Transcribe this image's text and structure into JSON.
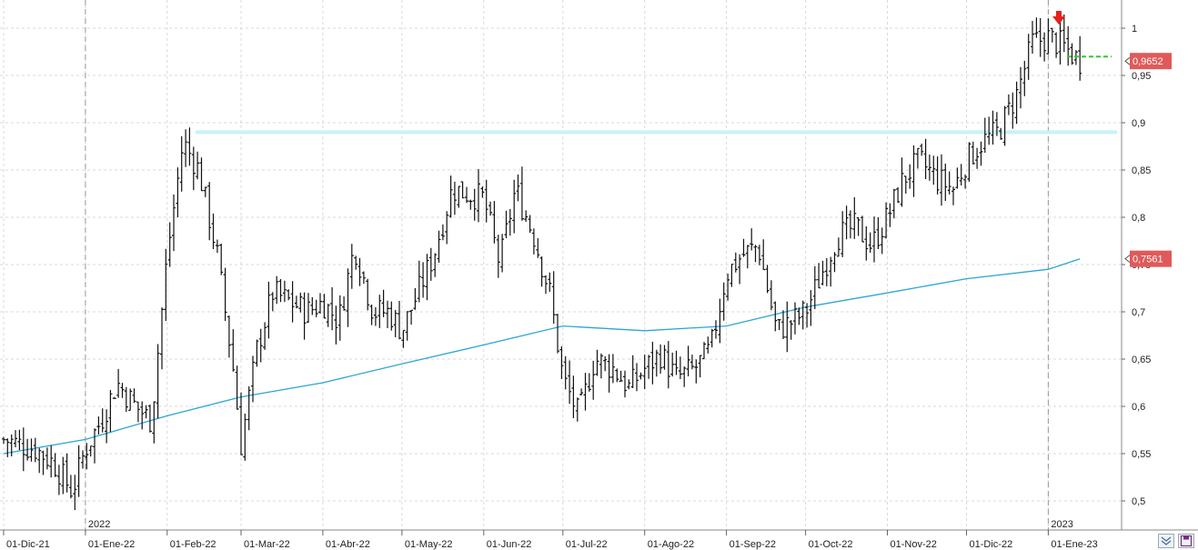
{
  "chart_data": {
    "type": "ohlc",
    "title": "",
    "xlabel": "",
    "ylabel": "",
    "ylim": [
      0.48,
      1.03
    ],
    "y_ticks": [
      "0,5",
      "0,55",
      "0,6",
      "0,65",
      "0,7",
      "0,75",
      "0,8",
      "0,85",
      "0,9",
      "0,95",
      "1"
    ],
    "x_tick_labels": [
      "01-Dic-21",
      "01-Ene-22",
      "01-Feb-22",
      "01-Mar-22",
      "01-Abr-22",
      "01-May-22",
      "01-Jun-22",
      "01-Jul-22",
      "01-Ago-22",
      "01-Sep-22",
      "01-Oct-22",
      "01-Nov-22",
      "01-Dic-22",
      "01-Ene-23"
    ],
    "year_labels": [
      "2022",
      "2023"
    ],
    "price_close_series": [
      [
        "2021-12-01",
        0.565
      ],
      [
        "2021-12-07",
        0.56
      ],
      [
        "2021-12-13",
        0.555
      ],
      [
        "2021-12-20",
        0.54
      ],
      [
        "2021-12-27",
        0.51
      ],
      [
        "2022-01-01",
        0.555
      ],
      [
        "2022-01-07",
        0.585
      ],
      [
        "2022-01-13",
        0.625
      ],
      [
        "2022-01-20",
        0.6
      ],
      [
        "2022-01-26",
        0.585
      ],
      [
        "2022-02-01",
        0.76
      ],
      [
        "2022-02-07",
        0.88
      ],
      [
        "2022-02-13",
        0.85
      ],
      [
        "2022-02-20",
        0.76
      ],
      [
        "2022-02-26",
        0.64
      ],
      [
        "2022-03-01",
        0.56
      ],
      [
        "2022-03-07",
        0.66
      ],
      [
        "2022-03-13",
        0.72
      ],
      [
        "2022-03-20",
        0.71
      ],
      [
        "2022-03-26",
        0.7
      ],
      [
        "2022-04-01",
        0.71
      ],
      [
        "2022-04-07",
        0.69
      ],
      [
        "2022-04-13",
        0.77
      ],
      [
        "2022-04-20",
        0.7
      ],
      [
        "2022-04-26",
        0.7
      ],
      [
        "2022-05-01",
        0.68
      ],
      [
        "2022-05-07",
        0.72
      ],
      [
        "2022-05-13",
        0.76
      ],
      [
        "2022-05-20",
        0.83
      ],
      [
        "2022-05-26",
        0.825
      ],
      [
        "2022-06-01",
        0.82
      ],
      [
        "2022-06-07",
        0.75
      ],
      [
        "2022-06-13",
        0.83
      ],
      [
        "2022-06-20",
        0.78
      ],
      [
        "2022-06-26",
        0.72
      ],
      [
        "2022-07-01",
        0.63
      ],
      [
        "2022-07-07",
        0.59
      ],
      [
        "2022-07-13",
        0.65
      ],
      [
        "2022-07-20",
        0.64
      ],
      [
        "2022-07-26",
        0.62
      ],
      [
        "2022-08-01",
        0.64
      ],
      [
        "2022-08-07",
        0.655
      ],
      [
        "2022-08-13",
        0.63
      ],
      [
        "2022-08-20",
        0.64
      ],
      [
        "2022-08-26",
        0.66
      ],
      [
        "2022-09-01",
        0.74
      ],
      [
        "2022-09-07",
        0.76
      ],
      [
        "2022-09-13",
        0.77
      ],
      [
        "2022-09-20",
        0.68
      ],
      [
        "2022-09-26",
        0.69
      ],
      [
        "2022-10-01",
        0.7
      ],
      [
        "2022-10-07",
        0.74
      ],
      [
        "2022-10-13",
        0.78
      ],
      [
        "2022-10-20",
        0.79
      ],
      [
        "2022-10-26",
        0.77
      ],
      [
        "2022-11-01",
        0.8
      ],
      [
        "2022-11-07",
        0.84
      ],
      [
        "2022-11-13",
        0.86
      ],
      [
        "2022-11-20",
        0.84
      ],
      [
        "2022-11-26",
        0.83
      ],
      [
        "2022-12-01",
        0.86
      ],
      [
        "2022-12-07",
        0.88
      ],
      [
        "2022-12-13",
        0.89
      ],
      [
        "2022-12-20",
        0.93
      ],
      [
        "2022-12-26",
        0.985
      ],
      [
        "2023-01-01",
        0.99
      ],
      [
        "2023-01-07",
        0.98
      ],
      [
        "2023-01-13",
        0.9652
      ]
    ],
    "moving_average_series": [
      [
        "2021-12-01",
        0.55
      ],
      [
        "2022-01-01",
        0.565
      ],
      [
        "2022-02-01",
        0.59
      ],
      [
        "2022-03-01",
        0.61
      ],
      [
        "2022-04-01",
        0.625
      ],
      [
        "2022-05-01",
        0.645
      ],
      [
        "2022-06-01",
        0.665
      ],
      [
        "2022-07-01",
        0.685
      ],
      [
        "2022-08-01",
        0.68
      ],
      [
        "2022-09-01",
        0.685
      ],
      [
        "2022-10-01",
        0.705
      ],
      [
        "2022-11-01",
        0.72
      ],
      [
        "2022-12-01",
        0.735
      ],
      [
        "2023-01-01",
        0.745
      ],
      [
        "2023-01-13",
        0.7561
      ]
    ],
    "resistance_level": 0.89,
    "last_price_level": 0.97,
    "last_price_label": "0,9652",
    "moving_average_label": "0,7561",
    "colors": {
      "bars": "#111111",
      "moving_average": "#2ba6d6",
      "resistance": "#c8f2f6",
      "reference": "#32c832",
      "price_tag": "#e05a5a",
      "marker": "#e8201c"
    },
    "grid": true,
    "marker": "red-down-arrow"
  },
  "controls": {
    "collapse_icon": "double-chevron-down-icon",
    "save_icon": "save-icon"
  }
}
